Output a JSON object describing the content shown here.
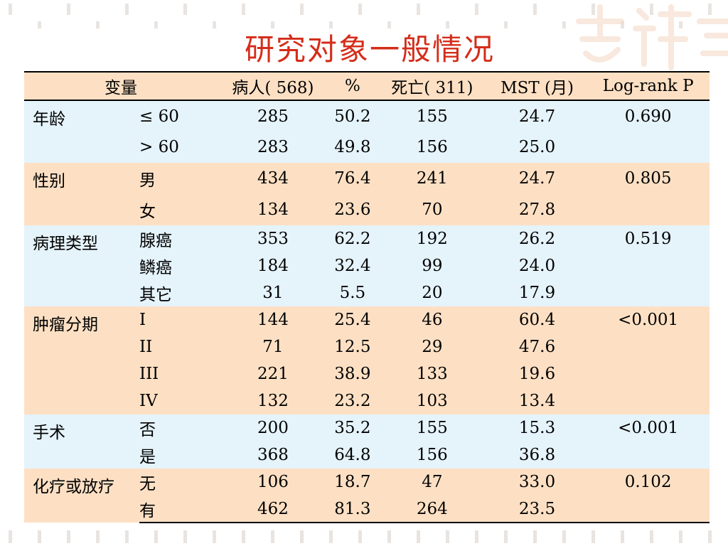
{
  "title": "研究对象一般情况",
  "table": {
    "headers": [
      "变量",
      "病人( 568)",
      "%",
      "死亡( 311)",
      "MST (月)",
      "Log-rank P"
    ],
    "groups": [
      {
        "variable": "年龄",
        "rows": [
          {
            "sub": "≤ 60",
            "patients": "285",
            "pct": "50.2",
            "deaths": "155",
            "mst": "24.7",
            "p": "0.690"
          },
          {
            "sub": "> 60",
            "patients": "283",
            "pct": "49.8",
            "deaths": "156",
            "mst": "25.0",
            "p": ""
          }
        ]
      },
      {
        "variable": "性别",
        "rows": [
          {
            "sub": "男",
            "patients": "434",
            "pct": "76.4",
            "deaths": "241",
            "mst": "24.7",
            "p": "0.805"
          },
          {
            "sub": "女",
            "patients": "134",
            "pct": "23.6",
            "deaths": "70",
            "mst": "27.8",
            "p": ""
          }
        ]
      },
      {
        "variable": "病理类型",
        "rows": [
          {
            "sub": "腺癌",
            "patients": "353",
            "pct": "62.2",
            "deaths": "192",
            "mst": "26.2",
            "p": "0.519"
          },
          {
            "sub": "鳞癌",
            "patients": "184",
            "pct": "32.4",
            "deaths": "99",
            "mst": "24.0",
            "p": ""
          },
          {
            "sub": "其它",
            "patients": "31",
            "pct": "5.5",
            "deaths": "20",
            "mst": "17.9",
            "p": ""
          }
        ]
      },
      {
        "variable": "肿瘤分期",
        "rows": [
          {
            "sub": "I",
            "patients": "144",
            "pct": "25.4",
            "deaths": "46",
            "mst": "60.4",
            "p": "<0.001"
          },
          {
            "sub": "II",
            "patients": "71",
            "pct": "12.5",
            "deaths": "29",
            "mst": "47.6",
            "p": ""
          },
          {
            "sub": "III",
            "patients": "221",
            "pct": "38.9",
            "deaths": "133",
            "mst": "19.6",
            "p": ""
          },
          {
            "sub": "IV",
            "patients": "132",
            "pct": "23.2",
            "deaths": "103",
            "mst": "13.4",
            "p": ""
          }
        ]
      },
      {
        "variable": "手术",
        "rows": [
          {
            "sub": "否",
            "patients": "200",
            "pct": "35.2",
            "deaths": "155",
            "mst": "15.3",
            "p": "<0.001"
          },
          {
            "sub": "是",
            "patients": "368",
            "pct": "64.8",
            "deaths": "156",
            "mst": "36.8",
            "p": ""
          }
        ]
      },
      {
        "variable": "化疗或放疗",
        "rows": [
          {
            "sub": "无",
            "patients": "106",
            "pct": "18.7",
            "deaths": "47",
            "mst": "33.0",
            "p": "0.102"
          },
          {
            "sub": "有",
            "patients": "462",
            "pct": "81.3",
            "deaths": "264",
            "mst": "23.5",
            "p": ""
          }
        ]
      }
    ]
  },
  "colors": {
    "title": "#d42d1a",
    "row_blue": "#e5f3fb",
    "row_peach": "#fde0c4"
  }
}
